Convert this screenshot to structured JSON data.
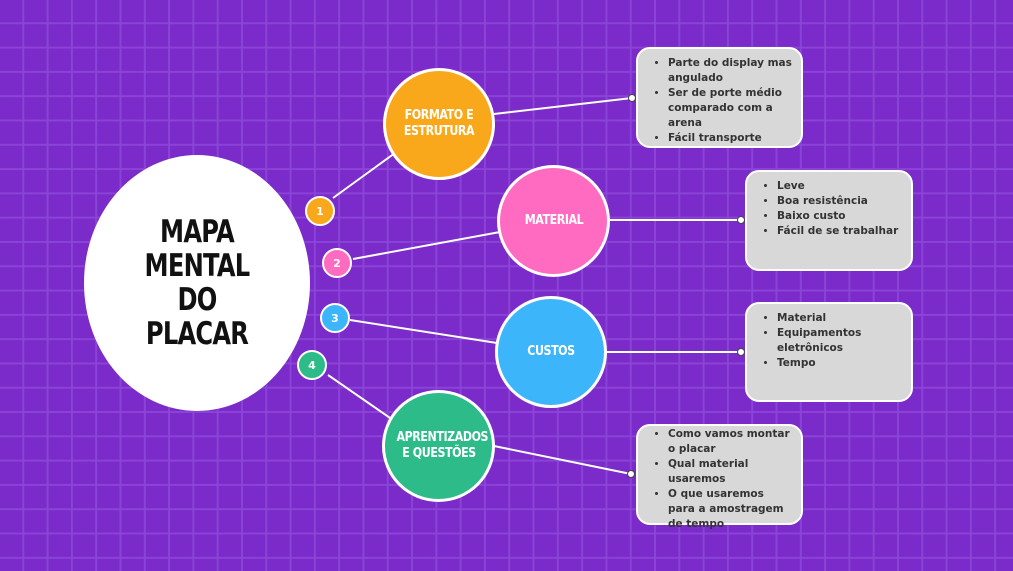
{
  "title": "MAPA MENTAL DO PLACAR",
  "branches": [
    {
      "number": "1",
      "label": "FORMATO E ESTRUTURA",
      "color": "#f9a81c",
      "items": [
        "Parte do display mas angulado",
        "Ser de porte médio comparado com a arena",
        "Fácil transporte"
      ]
    },
    {
      "number": "2",
      "label": "MATERIAL",
      "color": "#ff6bc1",
      "items": [
        "Leve",
        "Boa resistência",
        "Baixo custo",
        "Fácil de se trabalhar"
      ]
    },
    {
      "number": "3",
      "label": "CUSTOS",
      "color": "#3db5fb",
      "items": [
        "Material",
        "Equipamentos eletrônicos",
        "Tempo"
      ]
    },
    {
      "number": "4",
      "label": "APRENTIZADOS E QUESTÕES",
      "color": "#2dbb8a",
      "items": [
        "Como vamos montar o placar",
        "Qual material usaremos",
        "O que usaremos para a amostragem de tempo"
      ]
    }
  ]
}
